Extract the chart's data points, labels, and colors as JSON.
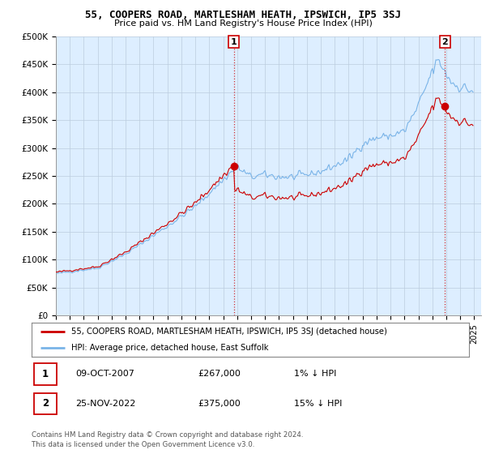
{
  "title1": "55, COOPERS ROAD, MARTLESHAM HEATH, IPSWICH, IP5 3SJ",
  "title2": "Price paid vs. HM Land Registry's House Price Index (HPI)",
  "ylabel_ticks": [
    "£0",
    "£50K",
    "£100K",
    "£150K",
    "£200K",
    "£250K",
    "£300K",
    "£350K",
    "£400K",
    "£450K",
    "£500K"
  ],
  "ytick_values": [
    0,
    50000,
    100000,
    150000,
    200000,
    250000,
    300000,
    350000,
    400000,
    450000,
    500000
  ],
  "ylim": [
    0,
    500000
  ],
  "xlim_start": 1995.0,
  "xlim_end": 2025.5,
  "hpi_color": "#7ab4e8",
  "price_color": "#cc0000",
  "plot_bg_color": "#ddeeff",
  "marker1_year": 2007.77,
  "marker1_value": 267000,
  "marker1_label": "1",
  "marker2_year": 2022.9,
  "marker2_value": 375000,
  "marker2_label": "2",
  "legend_line1": "55, COOPERS ROAD, MARTLESHAM HEATH, IPSWICH, IP5 3SJ (detached house)",
  "legend_line2": "HPI: Average price, detached house, East Suffolk",
  "table_row1": [
    "1",
    "09-OCT-2007",
    "£267,000",
    "1% ↓ HPI"
  ],
  "table_row2": [
    "2",
    "25-NOV-2022",
    "£375,000",
    "15% ↓ HPI"
  ],
  "footnote": "Contains HM Land Registry data © Crown copyright and database right 2024.\nThis data is licensed under the Open Government Licence v3.0.",
  "background_color": "#ffffff",
  "grid_color": "#bbccdd"
}
